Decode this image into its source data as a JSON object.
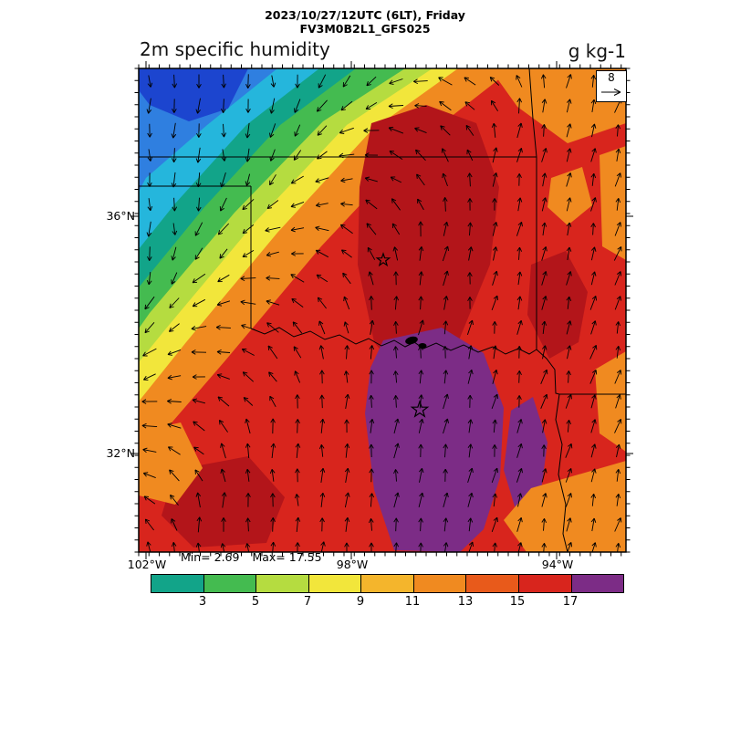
{
  "header": {
    "datetime_line": "2023/10/27/12UTC (6LT), Friday",
    "model_line": "FV3M0B2L1_GFS025",
    "variable_title": "2m specific humidity",
    "units_label": "g kg-1"
  },
  "map": {
    "lat_tick_labels": [
      "36°N",
      "32°N"
    ],
    "lon_tick_labels": [
      "102°W",
      "98°W",
      "94°W"
    ],
    "wind_reference": {
      "value": "8"
    }
  },
  "stats": {
    "min_text": "Min= 2.69",
    "max_text": "Max= 17.55"
  },
  "colorbar": {
    "tick_labels": [
      "3",
      "5",
      "7",
      "9",
      "11",
      "13",
      "15",
      "17"
    ],
    "segment_colors": [
      "#12a489",
      "#44bb50",
      "#b5dc40",
      "#f2e63b",
      "#f4b52c",
      "#f08a20",
      "#e85a1b",
      "#d8251d",
      "#7c2c86"
    ]
  },
  "palette": {
    "deep_blue": "#1c45cf",
    "blue": "#2f7fe0",
    "cyan": "#25b6dc",
    "teal": "#12a489",
    "green": "#44bb50",
    "yellow_green": "#b5dc40",
    "yellow": "#f2e63b",
    "orange": "#f08a20",
    "red": "#d8251d",
    "dark_red": "#b3151a",
    "purple": "#7c2c86"
  },
  "chart_data": {
    "type": "heatmap",
    "title": "2m specific humidity",
    "units": "g kg-1",
    "valid_time": "2023/10/27/12UTC (6LT), Friday",
    "model_run": "FV3M0B2L1_GFS025",
    "field_min": 2.69,
    "field_max": 17.55,
    "colorbar_levels": [
      3,
      5,
      7,
      9,
      11,
      13,
      15,
      17
    ],
    "colorbar_colors": [
      "#12a489",
      "#44bb50",
      "#b5dc40",
      "#f2e63b",
      "#f4b52c",
      "#f08a20",
      "#e85a1b",
      "#d8251d",
      "#7c2c86"
    ],
    "x_axis": {
      "ticks": [
        "102°W",
        "98°W",
        "94°W"
      ]
    },
    "y_axis": {
      "ticks": [
        "36°N",
        "32°N"
      ]
    },
    "overlay": "wind vectors, reference magnitude = 8",
    "pattern_summary": "Dry air (blue/cyan/green, ~3-7 g/kg) over the northwest corner with a sharp SW-NE moisture gradient band (green-yellow-orange); moist air (red, ~13-15 g/kg) covers the center and southeast, with maximum humidity (dark red/purple, >15-17 g/kg) over north-central Texas; state borders, Red River and two city star markers drawn over the field."
  }
}
